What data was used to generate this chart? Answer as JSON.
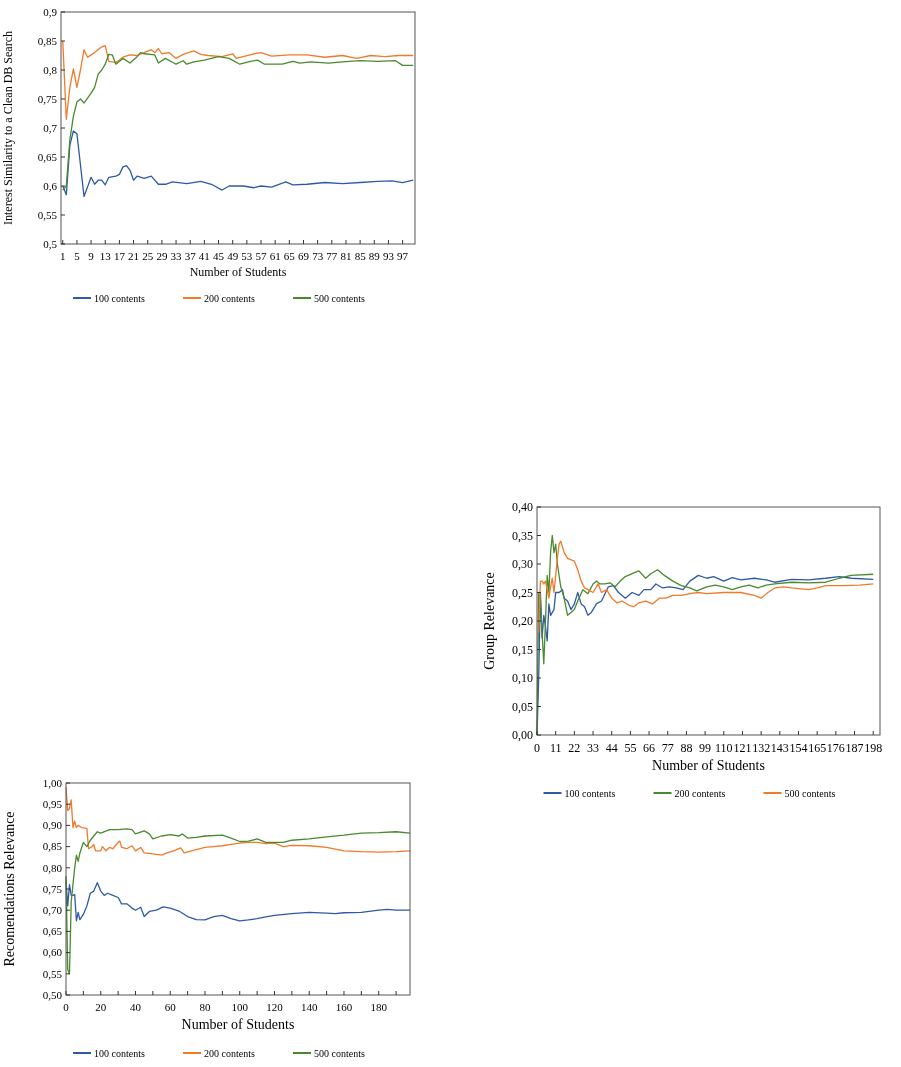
{
  "chart_data": [
    {
      "type": "line",
      "xlabel": "Number of Students",
      "ylabel": "Interest Similarity to a Clean DB Search",
      "legend": "bottom",
      "grid": false,
      "xlim": [
        0.5,
        100.5
      ],
      "xticks": [
        1,
        5,
        9,
        13,
        17,
        21,
        25,
        29,
        33,
        37,
        41,
        45,
        49,
        53,
        57,
        61,
        65,
        69,
        73,
        77,
        81,
        85,
        89,
        93,
        97
      ],
      "ylim": [
        0.5,
        0.9
      ],
      "yticks": [
        {
          "value": 0.5,
          "label": "0,5"
        },
        {
          "value": 0.55,
          "label": "0,55"
        },
        {
          "value": 0.6,
          "label": "0,6"
        },
        {
          "value": 0.65,
          "label": "0,65"
        },
        {
          "value": 0.7,
          "label": "0,7"
        },
        {
          "value": 0.75,
          "label": "0,75"
        },
        {
          "value": 0.8,
          "label": "0,8"
        },
        {
          "value": 0.85,
          "label": "0,85"
        },
        {
          "value": 0.9,
          "label": "0,9"
        }
      ],
      "series": [
        {
          "name": "100 contents",
          "color": "#2e5aa8",
          "x": [
            1,
            2,
            3,
            4,
            5,
            7,
            9,
            10,
            11,
            12,
            13,
            14,
            16,
            17,
            18,
            19,
            20,
            21,
            22,
            24,
            26,
            28,
            30,
            32,
            36,
            40,
            43,
            46,
            48,
            52,
            55,
            57,
            60,
            64,
            66,
            70,
            75,
            80,
            85,
            90,
            94,
            97,
            100
          ],
          "values": [
            0.6,
            0.585,
            0.67,
            0.695,
            0.69,
            0.582,
            0.615,
            0.603,
            0.61,
            0.61,
            0.602,
            0.615,
            0.617,
            0.62,
            0.633,
            0.635,
            0.627,
            0.61,
            0.617,
            0.613,
            0.617,
            0.603,
            0.603,
            0.607,
            0.604,
            0.608,
            0.603,
            0.593,
            0.6,
            0.6,
            0.597,
            0.6,
            0.598,
            0.607,
            0.602,
            0.603,
            0.606,
            0.604,
            0.606,
            0.608,
            0.609,
            0.606,
            0.61
          ]
        },
        {
          "name": "200 contents",
          "color": "#f07a2a",
          "x": [
            1,
            2,
            3,
            4,
            5,
            6,
            7,
            8,
            10,
            12,
            13,
            14,
            16,
            18,
            20,
            22,
            24,
            26,
            27,
            28,
            29,
            31,
            33,
            35,
            38,
            40,
            42,
            46,
            49,
            50,
            55,
            57,
            60,
            65,
            70,
            75,
            80,
            84,
            88,
            92,
            96,
            100
          ],
          "values": [
            0.85,
            0.715,
            0.77,
            0.802,
            0.77,
            0.8,
            0.835,
            0.822,
            0.83,
            0.84,
            0.842,
            0.815,
            0.813,
            0.822,
            0.826,
            0.825,
            0.83,
            0.835,
            0.83,
            0.837,
            0.828,
            0.83,
            0.82,
            0.827,
            0.833,
            0.827,
            0.825,
            0.823,
            0.828,
            0.82,
            0.828,
            0.83,
            0.824,
            0.826,
            0.826,
            0.822,
            0.825,
            0.82,
            0.825,
            0.823,
            0.825,
            0.825
          ]
        },
        {
          "name": "500 contents",
          "color": "#4a8a2e",
          "x": [
            1,
            2,
            3,
            4,
            5,
            6,
            7,
            9,
            10,
            11,
            12,
            13,
            14,
            15,
            16,
            18,
            20,
            22,
            23,
            24,
            27,
            28,
            30,
            33,
            35,
            36,
            38,
            41,
            45,
            48,
            51,
            54,
            56,
            58,
            63,
            66,
            68,
            71,
            76,
            80,
            85,
            90,
            95,
            97,
            100
          ],
          "values": [
            0.593,
            0.6,
            0.68,
            0.72,
            0.745,
            0.75,
            0.743,
            0.76,
            0.77,
            0.793,
            0.8,
            0.81,
            0.827,
            0.826,
            0.81,
            0.82,
            0.812,
            0.823,
            0.83,
            0.828,
            0.826,
            0.812,
            0.82,
            0.81,
            0.816,
            0.81,
            0.814,
            0.817,
            0.823,
            0.82,
            0.81,
            0.815,
            0.817,
            0.81,
            0.81,
            0.815,
            0.812,
            0.814,
            0.812,
            0.814,
            0.816,
            0.815,
            0.816,
            0.808,
            0.808
          ]
        }
      ]
    },
    {
      "type": "line",
      "xlabel": "Number of Students",
      "ylabel": "Group Relevance",
      "legend": "bottom",
      "grid": false,
      "xlim": [
        0,
        202
      ],
      "xticks": [
        0,
        11,
        22,
        33,
        44,
        55,
        66,
        77,
        88,
        99,
        110,
        121,
        132,
        143,
        154,
        165,
        176,
        187,
        198
      ],
      "ylim": [
        0,
        0.4
      ],
      "yticks": [
        {
          "value": 0,
          "label": "0,00"
        },
        {
          "value": 0.05,
          "label": "0,05"
        },
        {
          "value": 0.1,
          "label": "0,10"
        },
        {
          "value": 0.15,
          "label": "0,15"
        },
        {
          "value": 0.2,
          "label": "0,20"
        },
        {
          "value": 0.25,
          "label": "0,25"
        },
        {
          "value": 0.3,
          "label": "0,30"
        },
        {
          "value": 0.35,
          "label": "0,35"
        },
        {
          "value": 0.4,
          "label": "0,40"
        }
      ],
      "series": [
        {
          "name": "100 contents",
          "color": "#2e5aa8",
          "x": [
            0,
            1,
            2,
            3,
            4,
            5,
            6,
            7,
            8,
            10,
            11,
            13,
            15,
            16,
            18,
            20,
            22,
            24,
            26,
            28,
            30,
            32,
            35,
            38,
            42,
            45,
            48,
            52,
            56,
            60,
            63,
            67,
            70,
            74,
            78,
            82,
            86,
            90,
            95,
            100,
            104,
            110,
            115,
            120,
            128,
            135,
            140,
            150,
            160,
            170,
            178,
            185,
            198
          ],
          "values": [
            0.0,
            0.1,
            0.25,
            0.17,
            0.21,
            0.19,
            0.165,
            0.23,
            0.21,
            0.22,
            0.25,
            0.25,
            0.255,
            0.24,
            0.235,
            0.22,
            0.23,
            0.25,
            0.23,
            0.225,
            0.21,
            0.215,
            0.23,
            0.235,
            0.26,
            0.262,
            0.25,
            0.24,
            0.25,
            0.245,
            0.255,
            0.255,
            0.265,
            0.258,
            0.26,
            0.258,
            0.255,
            0.27,
            0.28,
            0.275,
            0.278,
            0.27,
            0.276,
            0.272,
            0.275,
            0.272,
            0.268,
            0.273,
            0.272,
            0.275,
            0.278,
            0.275,
            0.273
          ]
        },
        {
          "name": "200 contents",
          "color": "#4a8a2e",
          "x": [
            0,
            1,
            2,
            3,
            4,
            5,
            6,
            7,
            8,
            9,
            10,
            11,
            12,
            14,
            16,
            18,
            20,
            22,
            24,
            27,
            30,
            33,
            35,
            37,
            40,
            43,
            46,
            49,
            52,
            56,
            60,
            64,
            67,
            71,
            75,
            80,
            85,
            90,
            94,
            100,
            105,
            110,
            115,
            120,
            125,
            130,
            135,
            140,
            150,
            160,
            170,
            178,
            185,
            198
          ],
          "values": [
            0.0,
            0.25,
            0.24,
            0.18,
            0.125,
            0.2,
            0.28,
            0.25,
            0.32,
            0.35,
            0.32,
            0.335,
            0.3,
            0.26,
            0.24,
            0.21,
            0.215,
            0.22,
            0.235,
            0.255,
            0.248,
            0.265,
            0.27,
            0.265,
            0.265,
            0.267,
            0.26,
            0.27,
            0.278,
            0.283,
            0.288,
            0.275,
            0.283,
            0.29,
            0.28,
            0.27,
            0.262,
            0.258,
            0.253,
            0.26,
            0.263,
            0.26,
            0.255,
            0.26,
            0.263,
            0.258,
            0.263,
            0.265,
            0.268,
            0.267,
            0.268,
            0.275,
            0.28,
            0.282
          ]
        },
        {
          "name": "500 contents",
          "color": "#f07a2a",
          "x": [
            1,
            2,
            3,
            4,
            5,
            6,
            7,
            8,
            9,
            10,
            11,
            12,
            13,
            14,
            16,
            18,
            22,
            24,
            26,
            28,
            30,
            33,
            36,
            38,
            41,
            44,
            47,
            50,
            54,
            57,
            60,
            64,
            68,
            72,
            76,
            80,
            85,
            90,
            95,
            100,
            110,
            120,
            128,
            132,
            136,
            140,
            145,
            150,
            160,
            165,
            170,
            180,
            190,
            198
          ],
          "values": [
            0.18,
            0.27,
            0.27,
            0.265,
            0.27,
            0.255,
            0.24,
            0.26,
            0.275,
            0.25,
            0.28,
            0.31,
            0.335,
            0.34,
            0.32,
            0.31,
            0.305,
            0.29,
            0.27,
            0.258,
            0.255,
            0.25,
            0.265,
            0.25,
            0.255,
            0.24,
            0.232,
            0.235,
            0.228,
            0.225,
            0.232,
            0.235,
            0.23,
            0.24,
            0.24,
            0.245,
            0.245,
            0.248,
            0.25,
            0.248,
            0.25,
            0.25,
            0.245,
            0.24,
            0.25,
            0.258,
            0.26,
            0.258,
            0.255,
            0.258,
            0.262,
            0.262,
            0.263,
            0.265
          ]
        }
      ]
    },
    {
      "type": "line",
      "xlabel": "Number of Students",
      "ylabel": "Recomendations Relevance",
      "legend": "bottom",
      "grid": false,
      "xlim": [
        0,
        198
      ],
      "xticks": [
        0,
        {
          "value": 10,
          "label": null
        },
        20,
        {
          "value": 30,
          "label": null
        },
        40,
        {
          "value": 50,
          "label": null
        },
        60,
        {
          "value": 70,
          "label": null
        },
        80,
        {
          "value": 90,
          "label": null
        },
        100,
        {
          "value": 110,
          "label": null
        },
        120,
        {
          "value": 130,
          "label": null
        },
        140,
        {
          "value": 150,
          "label": null
        },
        160,
        {
          "value": 170,
          "label": null
        },
        180,
        {
          "value": 190,
          "label": null
        }
      ],
      "ylim": [
        0.5,
        1
      ],
      "yticks": [
        {
          "value": 0.5,
          "label": "0,50"
        },
        {
          "value": 0.55,
          "label": "0,55"
        },
        {
          "value": 0.6,
          "label": "0,60"
        },
        {
          "value": 0.65,
          "label": "0,65"
        },
        {
          "value": 0.7,
          "label": "0,70"
        },
        {
          "value": 0.75,
          "label": "0,75"
        },
        {
          "value": 0.8,
          "label": "0,80"
        },
        {
          "value": 0.85,
          "label": "0,85"
        },
        {
          "value": 0.9,
          "label": "0,90"
        },
        {
          "value": 0.95,
          "label": "0,95"
        },
        {
          "value": 1,
          "label": "1,00"
        }
      ],
      "series": [
        {
          "name": "100 contents",
          "color": "#2e5aa8",
          "x": [
            0,
            1,
            2,
            3,
            4,
            5,
            6,
            7,
            8,
            10,
            12,
            14,
            16,
            18,
            20,
            22,
            24,
            27,
            30,
            32,
            35,
            38,
            40,
            43,
            45,
            48,
            52,
            56,
            60,
            65,
            70,
            75,
            80,
            85,
            90,
            95,
            100,
            105,
            110,
            115,
            120,
            130,
            140,
            150,
            155,
            160,
            170,
            180,
            185,
            190,
            198
          ],
          "values": [
            0.77,
            0.71,
            0.76,
            0.735,
            0.735,
            0.737,
            0.675,
            0.695,
            0.678,
            0.69,
            0.71,
            0.74,
            0.745,
            0.765,
            0.745,
            0.735,
            0.74,
            0.735,
            0.73,
            0.715,
            0.715,
            0.705,
            0.7,
            0.707,
            0.685,
            0.697,
            0.7,
            0.708,
            0.705,
            0.698,
            0.685,
            0.678,
            0.677,
            0.685,
            0.688,
            0.68,
            0.675,
            0.677,
            0.68,
            0.684,
            0.688,
            0.692,
            0.695,
            0.693,
            0.692,
            0.694,
            0.695,
            0.7,
            0.702,
            0.7,
            0.7
          ]
        },
        {
          "name": "200 contents",
          "color": "#f07a2a",
          "x": [
            0,
            1,
            2,
            3,
            4,
            5,
            6,
            7,
            9,
            12,
            13,
            15,
            16,
            17,
            20,
            21,
            23,
            25,
            27,
            30,
            31,
            32,
            35,
            38,
            40,
            43,
            45,
            50,
            55,
            58,
            62,
            66,
            68,
            75,
            80,
            85,
            90,
            95,
            100,
            105,
            110,
            115,
            120,
            125,
            130,
            140,
            150,
            160,
            170,
            180,
            190,
            198
          ],
          "values": [
            0.99,
            0.935,
            0.94,
            0.96,
            0.895,
            0.91,
            0.895,
            0.9,
            0.895,
            0.893,
            0.845,
            0.85,
            0.855,
            0.84,
            0.84,
            0.85,
            0.84,
            0.848,
            0.845,
            0.86,
            0.863,
            0.848,
            0.845,
            0.852,
            0.84,
            0.848,
            0.835,
            0.833,
            0.83,
            0.835,
            0.84,
            0.847,
            0.835,
            0.843,
            0.848,
            0.85,
            0.852,
            0.855,
            0.858,
            0.86,
            0.86,
            0.857,
            0.858,
            0.85,
            0.853,
            0.852,
            0.848,
            0.84,
            0.838,
            0.837,
            0.838,
            0.84
          ]
        },
        {
          "name": "500 contents",
          "color": "#4a8a2e",
          "x": [
            0,
            1,
            2,
            3,
            4,
            5,
            6,
            7,
            8,
            10,
            12,
            14,
            16,
            18,
            20,
            25,
            30,
            35,
            38,
            40,
            45,
            48,
            50,
            55,
            60,
            65,
            67,
            70,
            75,
            80,
            90,
            95,
            100,
            105,
            110,
            115,
            120,
            125,
            130,
            140,
            150,
            160,
            170,
            180,
            190,
            198
          ],
          "values": [
            0.78,
            0.56,
            0.55,
            0.72,
            0.76,
            0.8,
            0.83,
            0.815,
            0.835,
            0.86,
            0.85,
            0.865,
            0.875,
            0.885,
            0.882,
            0.89,
            0.89,
            0.892,
            0.89,
            0.88,
            0.887,
            0.88,
            0.868,
            0.875,
            0.878,
            0.875,
            0.88,
            0.87,
            0.872,
            0.875,
            0.877,
            0.87,
            0.862,
            0.863,
            0.868,
            0.86,
            0.86,
            0.86,
            0.865,
            0.868,
            0.873,
            0.877,
            0.882,
            0.883,
            0.885,
            0.882
          ]
        }
      ]
    }
  ]
}
